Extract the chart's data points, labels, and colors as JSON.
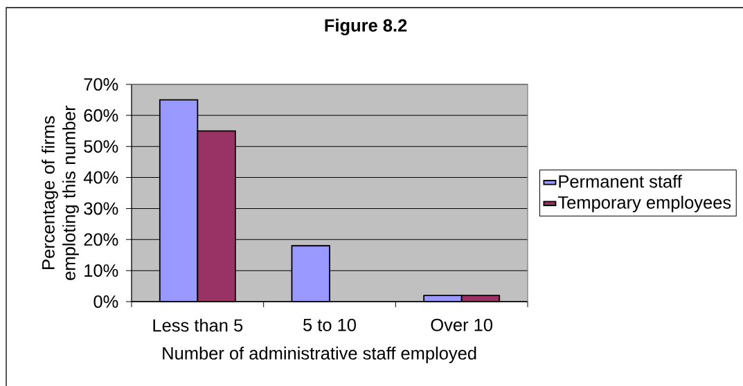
{
  "chart_data": {
    "type": "bar",
    "title": "Figure 8.2",
    "xlabel": "Number of administrative staff employed",
    "ylabel": "Percentage of firms emploting this number",
    "categories": [
      "Less than 5",
      "5 to 10",
      "Over 10"
    ],
    "series": [
      {
        "name": "Permanent staff",
        "color": "#9999ff",
        "values": [
          65,
          18,
          2
        ]
      },
      {
        "name": "Temporary employees",
        "color": "#993366",
        "values": [
          55,
          null,
          2
        ]
      }
    ],
    "ylim": [
      0,
      70
    ],
    "yticks": [
      {
        "value": 0,
        "label": "0%"
      },
      {
        "value": 10,
        "label": "10%"
      },
      {
        "value": 20,
        "label": "20%"
      },
      {
        "value": 30,
        "label": "30%"
      },
      {
        "value": 40,
        "label": "40%"
      },
      {
        "value": 50,
        "label": "50%"
      },
      {
        "value": 60,
        "label": "60%"
      },
      {
        "value": 70,
        "label": "70%"
      }
    ],
    "grid": "y",
    "legend": "right"
  }
}
